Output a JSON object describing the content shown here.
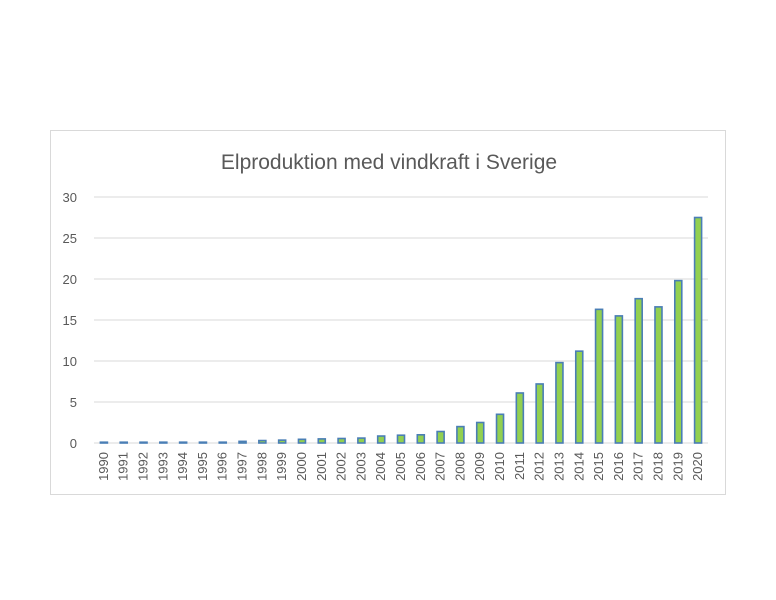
{
  "chart_data": {
    "type": "bar",
    "title": "Elproduktion med vindkraft i Sverige",
    "xlabel": "",
    "ylabel": "",
    "categories": [
      "1990",
      "1991",
      "1992",
      "1993",
      "1994",
      "1995",
      "1996",
      "1997",
      "1998",
      "1999",
      "2000",
      "2001",
      "2002",
      "2003",
      "2004",
      "2005",
      "2006",
      "2007",
      "2008",
      "2009",
      "2010",
      "2011",
      "2012",
      "2013",
      "2014",
      "2015",
      "2016",
      "2017",
      "2018",
      "2019",
      "2020"
    ],
    "values": [
      0.0,
      0.0,
      0.05,
      0.1,
      0.1,
      0.1,
      0.1,
      0.2,
      0.3,
      0.35,
      0.45,
      0.5,
      0.55,
      0.6,
      0.85,
      0.95,
      1.0,
      1.4,
      2.0,
      2.5,
      3.5,
      6.1,
      7.2,
      9.8,
      11.2,
      16.3,
      15.5,
      17.6,
      16.6,
      19.8,
      27.5
    ],
    "ylim": [
      0,
      30
    ],
    "yticks": [
      0,
      5,
      10,
      15,
      20,
      25,
      30
    ],
    "grid": true,
    "legend": "none",
    "colors": {
      "bar_fill": "#92d050",
      "bar_stroke": "#4a7eb5",
      "grid": "#d9d9d9",
      "text": "#595959"
    }
  }
}
